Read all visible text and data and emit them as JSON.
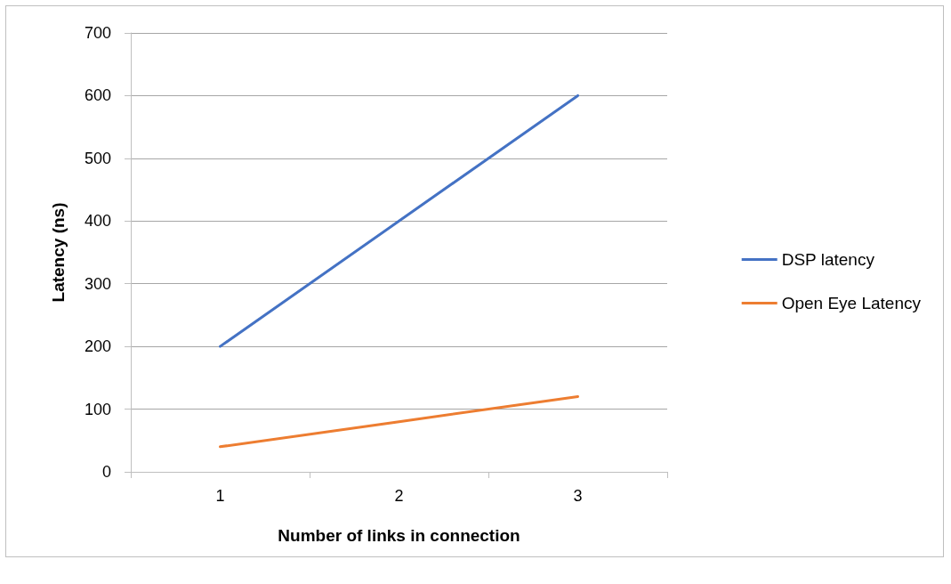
{
  "chart_data": {
    "type": "line",
    "xlabel": "Number of links in connection",
    "ylabel": "Latency (ns)",
    "categories": [
      "1",
      "2",
      "3"
    ],
    "series": [
      {
        "name": "DSP latency",
        "color": "#4472c4",
        "values": [
          200,
          400,
          600
        ]
      },
      {
        "name": "Open Eye Latency",
        "color": "#ed7d31",
        "values": [
          40,
          80,
          120
        ]
      }
    ],
    "ylim": [
      0,
      700
    ],
    "yticks": [
      0,
      100,
      200,
      300,
      400,
      500,
      600,
      700
    ],
    "grid": "y",
    "legend": "right",
    "marker": "none",
    "line_style": "solid"
  }
}
